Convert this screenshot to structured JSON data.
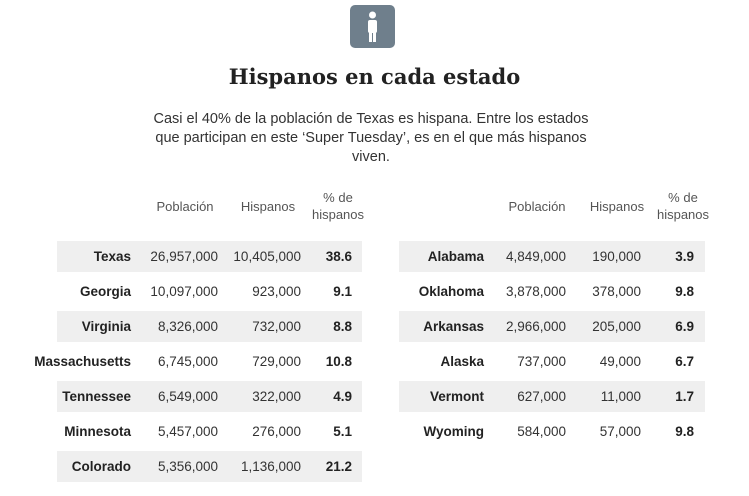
{
  "header": {
    "title": "Hispanos en cada estado",
    "subtitle": "Casi el 40% de la población de Texas es hispana. Entre los estados que participan en este ‘Super Tuesday’, es en el que más hispanos viven."
  },
  "tables": [
    {
      "columns": [
        "Población",
        "Hispanos",
        "% de hispanos"
      ],
      "rows": [
        [
          "Texas",
          "26,957,000",
          "10,405,000",
          "38.6"
        ],
        [
          "Georgia",
          "10,097,000",
          "923,000",
          "9.1"
        ],
        [
          "Virginia",
          "8,326,000",
          "732,000",
          "8.8"
        ],
        [
          "Massachusetts",
          "6,745,000",
          "729,000",
          "10.8"
        ],
        [
          "Tennessee",
          "6,549,000",
          "322,000",
          "4.9"
        ],
        [
          "Minnesota",
          "5,457,000",
          "276,000",
          "5.1"
        ],
        [
          "Colorado",
          "5,356,000",
          "1,136,000",
          "21.2"
        ]
      ]
    },
    {
      "columns": [
        "Población",
        "Hispanos",
        "% de hispanos"
      ],
      "rows": [
        [
          "Alabama",
          "4,849,000",
          "190,000",
          "3.9"
        ],
        [
          "Oklahoma",
          "3,878,000",
          "378,000",
          "9.8"
        ],
        [
          "Arkansas",
          "2,966,000",
          "205,000",
          "6.9"
        ],
        [
          "Alaska",
          "737,000",
          "49,000",
          "6.7"
        ],
        [
          "Vermont",
          "627,000",
          "11,000",
          "1.7"
        ],
        [
          "Wyoming",
          "584,000",
          "57,000",
          "9.8"
        ]
      ]
    }
  ]
}
